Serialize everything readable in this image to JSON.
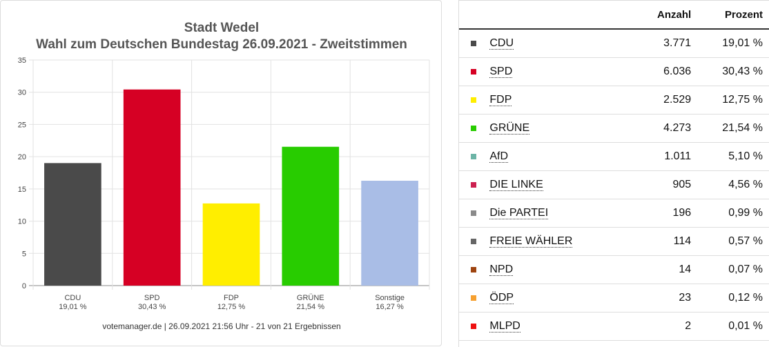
{
  "chart_data": {
    "type": "bar",
    "title": [
      "Stadt Wedel",
      "Wahl zum Deutschen Bundestag 26.09.2021  - Zweitstimmen"
    ],
    "categories": [
      "CDU",
      "SPD",
      "FDP",
      "GRÜNE",
      "Sonstige"
    ],
    "category_labels": [
      "19,01 %",
      "30,43 %",
      "12,75 %",
      "21,54 %",
      "16,27 %"
    ],
    "values": [
      19.01,
      30.43,
      12.75,
      21.54,
      16.27
    ],
    "colors": [
      "#4a4a4a",
      "#d60024",
      "#ffee00",
      "#28cc00",
      "#a9bde6"
    ],
    "ylim": [
      0,
      35
    ],
    "yticks": [
      0,
      5,
      10,
      15,
      20,
      25,
      30,
      35
    ],
    "grid": true,
    "source": "votemanager.de | 26.09.2021 21:56 Uhr - 21 von 21 Ergebnissen"
  },
  "table": {
    "headers": {
      "count": "Anzahl",
      "percent": "Prozent"
    },
    "rows": [
      {
        "party": "CDU",
        "count": "3.771",
        "percent": "19,01 %",
        "color": "#4a4a4a"
      },
      {
        "party": "SPD",
        "count": "6.036",
        "percent": "30,43 %",
        "color": "#d60024"
      },
      {
        "party": "FDP",
        "count": "2.529",
        "percent": "12,75 %",
        "color": "#ffee00"
      },
      {
        "party": "GRÜNE",
        "count": "4.273",
        "percent": "21,54 %",
        "color": "#28cc00"
      },
      {
        "party": "AfD",
        "count": "1.011",
        "percent": "5,10 %",
        "color": "#6cb4a6"
      },
      {
        "party": "DIE LINKE",
        "count": "905",
        "percent": "4,56 %",
        "color": "#cc2050"
      },
      {
        "party": "Die PARTEI",
        "count": "196",
        "percent": "0,99 %",
        "color": "#8a8a8a"
      },
      {
        "party": "FREIE WÄHLER",
        "count": "114",
        "percent": "0,57 %",
        "color": "#666666"
      },
      {
        "party": "NPD",
        "count": "14",
        "percent": "0,07 %",
        "color": "#9e4410"
      },
      {
        "party": "ÖDP",
        "count": "23",
        "percent": "0,12 %",
        "color": "#f6a030"
      },
      {
        "party": "MLPD",
        "count": "2",
        "percent": "0,01 %",
        "color": "#ee1111"
      }
    ]
  }
}
